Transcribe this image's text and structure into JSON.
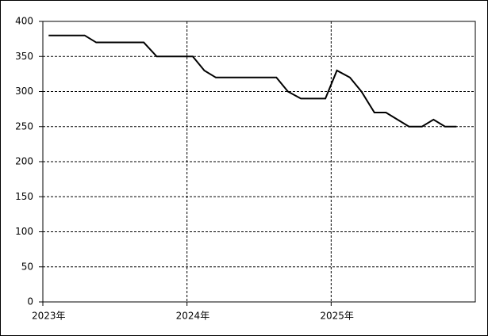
{
  "chart_data": {
    "type": "line",
    "x": [
      2023.04,
      2023.29,
      2023.37,
      2023.7,
      2023.79,
      2024.04,
      2024.12,
      2024.2,
      2024.62,
      2024.7,
      2024.79,
      2024.96,
      2025.04,
      2025.13,
      2025.21,
      2025.3,
      2025.38,
      2025.46,
      2025.54,
      2025.63,
      2025.71,
      2025.79,
      2025.87
    ],
    "series": [
      {
        "color": "#000000",
        "values": [
          380,
          380,
          370,
          370,
          350,
          350,
          330,
          320,
          320,
          300,
          290,
          290,
          330,
          320,
          300,
          270,
          270,
          260,
          250,
          250,
          260,
          250,
          250
        ]
      }
    ],
    "xlim": [
      2023,
      2026
    ],
    "xticks": [
      {
        "value": 2023,
        "label": "2023年"
      },
      {
        "value": 2024,
        "label": "2024年"
      },
      {
        "value": 2025,
        "label": "2025年"
      }
    ],
    "ylim": [
      0,
      400
    ],
    "yticks": [
      0,
      50,
      100,
      150,
      200,
      250,
      300,
      350,
      400
    ],
    "grid": true
  }
}
